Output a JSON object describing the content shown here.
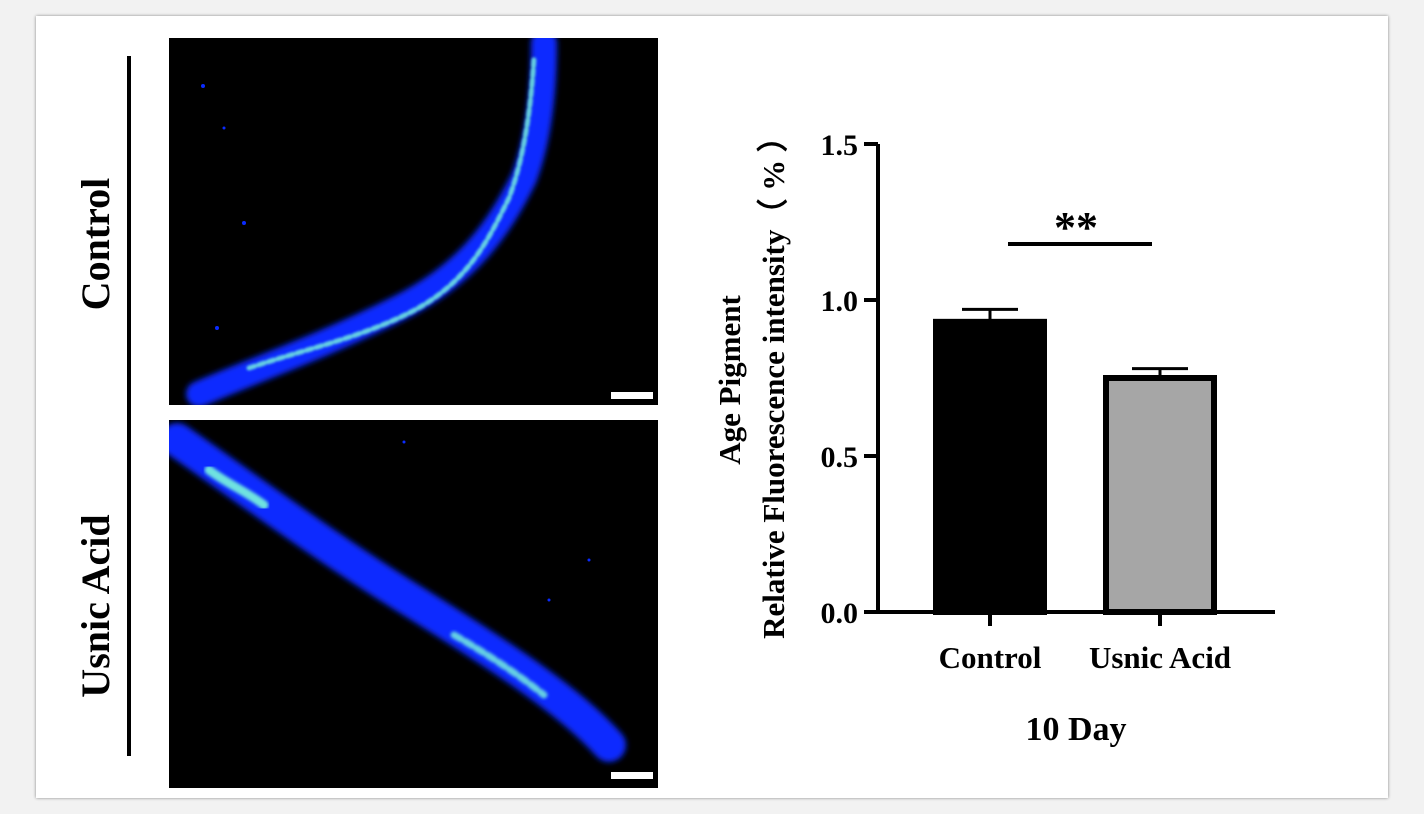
{
  "row_labels": [
    "Control",
    "Usnic Acid"
  ],
  "chart_data": {
    "type": "bar",
    "categories": [
      "Control",
      "Usnic Acid"
    ],
    "values": [
      0.93,
      0.75
    ],
    "errors": [
      0.04,
      0.03
    ],
    "bar_colors": [
      "#000000",
      "#a6a6a6"
    ],
    "ylabel_line1": "Age Pigment",
    "ylabel_line2": "Relative Fluorescence intensity（ % ）",
    "xlabel": "10 Day",
    "ylim": [
      0,
      1.5
    ],
    "yticks": [
      "0.0",
      "0.5",
      "1.0",
      "1.5"
    ],
    "significance": "**",
    "grid": false
  },
  "colors": {
    "worm_body": "#0a2bff",
    "worm_highlight": "#6fe3e0",
    "panel_bg": "#000000"
  }
}
